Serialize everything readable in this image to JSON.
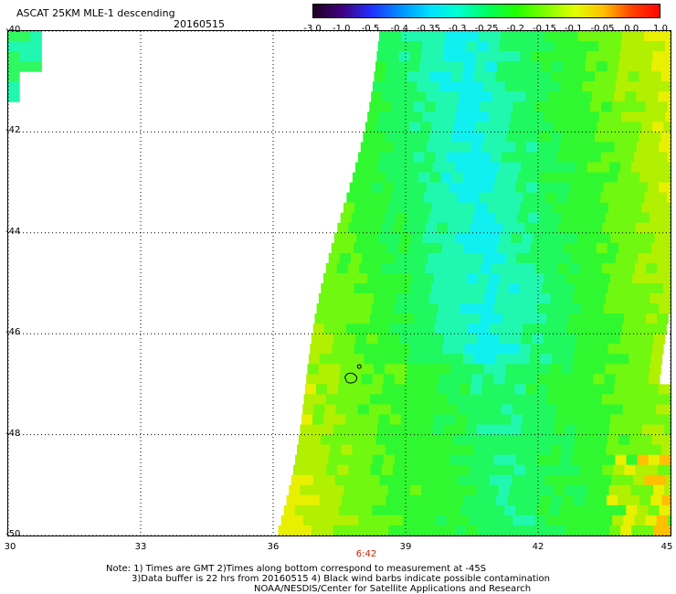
{
  "header": {
    "title": "ASCAT 25KM MLE-1 descending",
    "date": "20160515"
  },
  "colorbar": {
    "labels": [
      "-3.0",
      "-1.0",
      "-0.5",
      "-0.4",
      "-0.35",
      "-0.3",
      "-0.25",
      "-0.2",
      "-0.15",
      "-0.1",
      "-0.05",
      "0.0",
      "1.0"
    ],
    "colors": [
      "#200020",
      "#400080",
      "#2030ff",
      "#0090ff",
      "#00e0ff",
      "#00ffd0",
      "#00ff60",
      "#20ff00",
      "#80ff00",
      "#e0ff00",
      "#ffc000",
      "#ff4000",
      "#ff0000"
    ]
  },
  "map": {
    "lon_labels": [
      "30",
      "33",
      "36",
      "39",
      "42",
      "45"
    ],
    "lat_labels": [
      "-40",
      "-42",
      "-44",
      "-46",
      "-48",
      "-50"
    ],
    "lon_range": [
      30,
      45
    ],
    "lat_range": [
      -50,
      -40
    ],
    "time_label": "6:42"
  },
  "footer": {
    "line1": "Note: 1) Times are GMT 2)Times along bottom correspond to measurement at -45S",
    "line2": "3)Data buffer is 22 hrs from 20160515 4) Black wind barbs indicate possible contamination",
    "line3": "NOAA/NESDIS/Center for Satellite Applications and Research"
  }
}
